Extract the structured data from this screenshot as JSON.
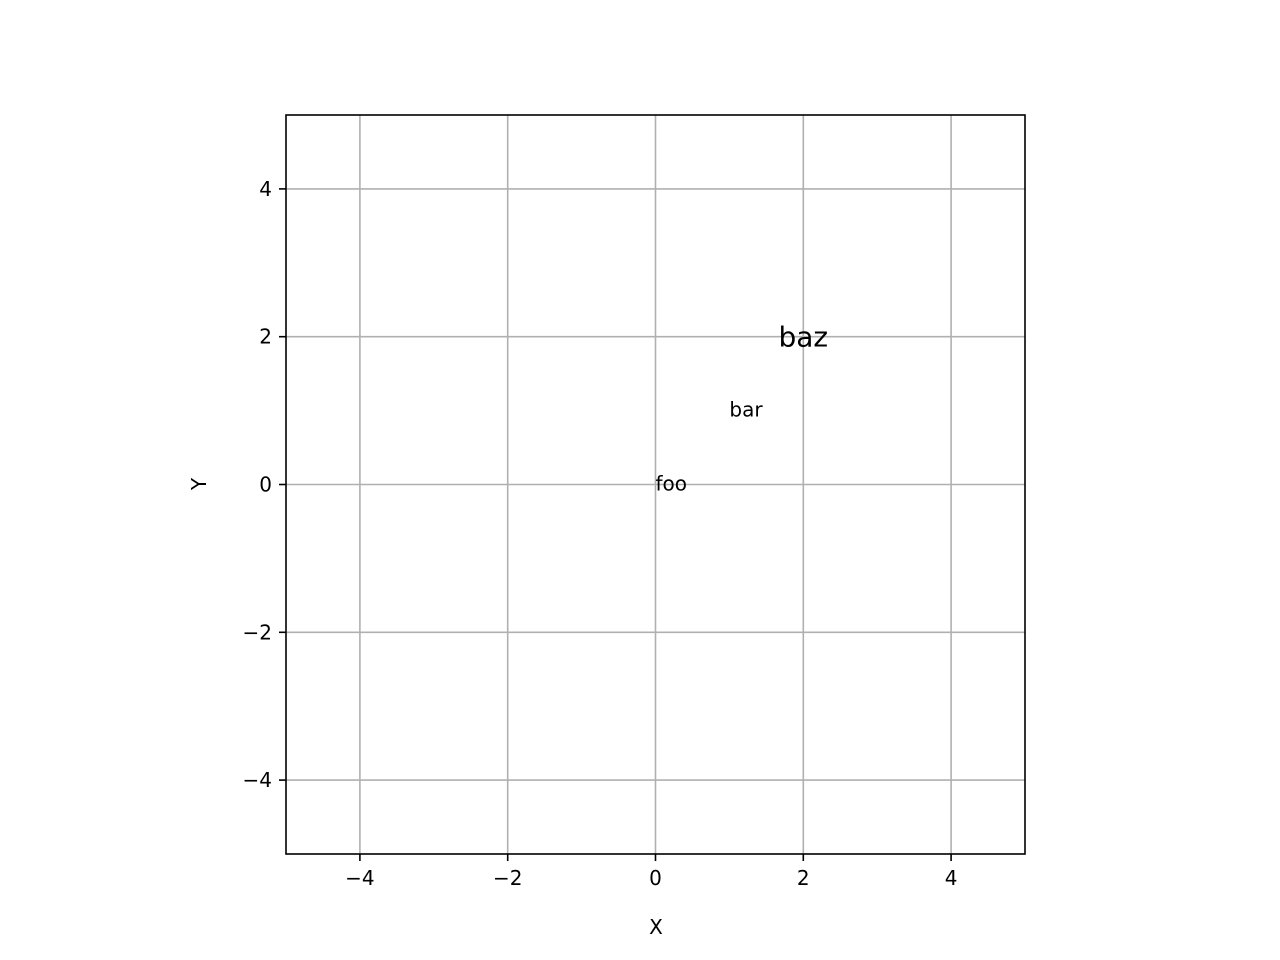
{
  "chart_data": {
    "type": "scatter",
    "title": "",
    "xlabel": "X",
    "ylabel": "Y",
    "xlim": [
      -5,
      5
    ],
    "ylim": [
      -5,
      5
    ],
    "grid": true,
    "x_ticks": [
      -4,
      -2,
      0,
      2,
      4
    ],
    "y_ticks": [
      -4,
      -2,
      0,
      2,
      4
    ],
    "x_tick_labels": [
      "−4",
      "−2",
      "0",
      "2",
      "4"
    ],
    "y_tick_labels": [
      "−4",
      "−2",
      "0",
      "2",
      "4"
    ],
    "annotations": [
      {
        "text": "foo",
        "x": 0,
        "y": 0,
        "color": "#000000",
        "align": "left-baseline"
      },
      {
        "text": "bar",
        "x": 1,
        "y": 1,
        "color": "#0000ff",
        "align": "left-baseline"
      },
      {
        "text": "baz",
        "x": 2,
        "y": 2,
        "color": "#000000",
        "align": "center"
      }
    ]
  }
}
